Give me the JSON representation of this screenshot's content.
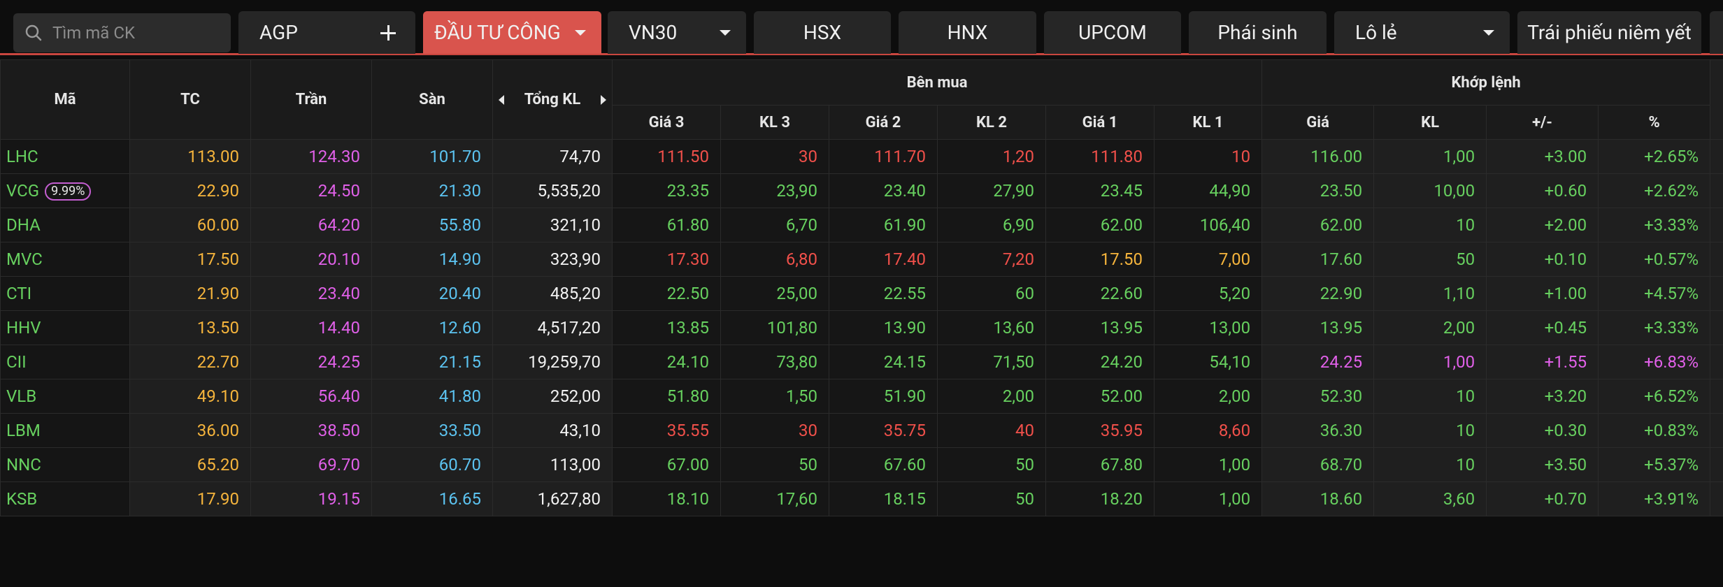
{
  "topbar": {
    "search_placeholder": "Tìm mã CK",
    "watchlist": "AGP",
    "tabs": [
      {
        "label": "ĐẦU TƯ CÔNG",
        "active": true,
        "dropdown": true
      },
      {
        "label": "VN30",
        "dropdown": true
      },
      {
        "label": "HSX"
      },
      {
        "label": "HNX"
      },
      {
        "label": "UPCOM"
      },
      {
        "label": "Phái sinh"
      },
      {
        "label": "Lô lẻ",
        "dropdown": true
      },
      {
        "label": "Trái phiếu niêm yết"
      }
    ]
  },
  "table": {
    "headers": {
      "symbol": "Mã",
      "ref": "TC",
      "ceil": "Trần",
      "floor": "Sàn",
      "total_volume": "Tổng KL",
      "bid_group": "Bên mua",
      "bids": [
        "Giá 3",
        "KL 3",
        "Giá 2",
        "KL 2",
        "Giá 1",
        "KL 1"
      ],
      "match_group": "Khớp lệnh",
      "match": [
        "Giá",
        "KL",
        "+/-",
        "%"
      ]
    },
    "rows": [
      {
        "symbol": "LHC",
        "symbol_color": "up",
        "ref": "113.00",
        "ceil": "124.30",
        "floor": "101.70",
        "total_volume": "74,70",
        "bids": [
          {
            "price": "111.50",
            "volume": "30",
            "color": "down"
          },
          {
            "price": "111.70",
            "volume": "1,20",
            "color": "down"
          },
          {
            "price": "111.80",
            "volume": "10",
            "color": "down"
          }
        ],
        "match": {
          "price": "116.00",
          "volume": "1,00",
          "change": "+3.00",
          "percent": "+2.65%",
          "color": "up"
        }
      },
      {
        "symbol": "VCG",
        "badge": "9.99%",
        "symbol_color": "up",
        "ref": "22.90",
        "ceil": "24.50",
        "floor": "21.30",
        "total_volume": "5,535,20",
        "bids": [
          {
            "price": "23.35",
            "volume": "23,90",
            "color": "up"
          },
          {
            "price": "23.40",
            "volume": "27,90",
            "color": "up"
          },
          {
            "price": "23.45",
            "volume": "44,90",
            "color": "up"
          }
        ],
        "match": {
          "price": "23.50",
          "volume": "10,00",
          "change": "+0.60",
          "percent": "+2.62%",
          "color": "up"
        }
      },
      {
        "symbol": "DHA",
        "symbol_color": "up",
        "ref": "60.00",
        "ceil": "64.20",
        "floor": "55.80",
        "total_volume": "321,10",
        "bids": [
          {
            "price": "61.80",
            "volume": "6,70",
            "color": "up"
          },
          {
            "price": "61.90",
            "volume": "6,90",
            "color": "up"
          },
          {
            "price": "62.00",
            "volume": "106,40",
            "color": "up"
          }
        ],
        "match": {
          "price": "62.00",
          "volume": "10",
          "change": "+2.00",
          "percent": "+3.33%",
          "color": "up"
        }
      },
      {
        "symbol": "MVC",
        "symbol_color": "up",
        "ref": "17.50",
        "ceil": "20.10",
        "floor": "14.90",
        "total_volume": "323,90",
        "bids": [
          {
            "price": "17.30",
            "volume": "6,80",
            "color": "down"
          },
          {
            "price": "17.40",
            "volume": "7,20",
            "color": "down"
          },
          {
            "price": "17.50",
            "volume": "7,00",
            "color": "ref"
          }
        ],
        "match": {
          "price": "17.60",
          "volume": "50",
          "change": "+0.10",
          "percent": "+0.57%",
          "color": "up"
        }
      },
      {
        "symbol": "CTI",
        "symbol_color": "up",
        "ref": "21.90",
        "ceil": "23.40",
        "floor": "20.40",
        "total_volume": "485,20",
        "bids": [
          {
            "price": "22.50",
            "volume": "25,00",
            "color": "up"
          },
          {
            "price": "22.55",
            "volume": "60",
            "color": "up"
          },
          {
            "price": "22.60",
            "volume": "5,20",
            "color": "up"
          }
        ],
        "match": {
          "price": "22.90",
          "volume": "1,10",
          "change": "+1.00",
          "percent": "+4.57%",
          "color": "up"
        }
      },
      {
        "symbol": "HHV",
        "symbol_color": "up",
        "ref": "13.50",
        "ceil": "14.40",
        "floor": "12.60",
        "total_volume": "4,517,20",
        "bids": [
          {
            "price": "13.85",
            "volume": "101,80",
            "color": "up"
          },
          {
            "price": "13.90",
            "volume": "13,60",
            "color": "up"
          },
          {
            "price": "13.95",
            "volume": "13,00",
            "color": "up"
          }
        ],
        "match": {
          "price": "13.95",
          "volume": "2,00",
          "change": "+0.45",
          "percent": "+3.33%",
          "color": "up"
        }
      },
      {
        "symbol": "CII",
        "symbol_color": "up",
        "ref": "22.70",
        "ceil": "24.25",
        "floor": "21.15",
        "total_volume": "19,259,70",
        "bids": [
          {
            "price": "24.10",
            "volume": "73,80",
            "color": "up"
          },
          {
            "price": "24.15",
            "volume": "71,50",
            "color": "up"
          },
          {
            "price": "24.20",
            "volume": "54,10",
            "color": "up"
          }
        ],
        "match": {
          "price": "24.25",
          "volume": "1,00",
          "change": "+1.55",
          "percent": "+6.83%",
          "color": "ceil"
        }
      },
      {
        "symbol": "VLB",
        "symbol_color": "up",
        "ref": "49.10",
        "ceil": "56.40",
        "floor": "41.80",
        "total_volume": "252,00",
        "bids": [
          {
            "price": "51.80",
            "volume": "1,50",
            "color": "up"
          },
          {
            "price": "51.90",
            "volume": "2,00",
            "color": "up"
          },
          {
            "price": "52.00",
            "volume": "2,00",
            "color": "up"
          }
        ],
        "match": {
          "price": "52.30",
          "volume": "10",
          "change": "+3.20",
          "percent": "+6.52%",
          "color": "up"
        }
      },
      {
        "symbol": "LBM",
        "symbol_color": "up",
        "ref": "36.00",
        "ceil": "38.50",
        "floor": "33.50",
        "total_volume": "43,10",
        "bids": [
          {
            "price": "35.55",
            "volume": "30",
            "color": "down"
          },
          {
            "price": "35.75",
            "volume": "40",
            "color": "down"
          },
          {
            "price": "35.95",
            "volume": "8,60",
            "color": "down"
          }
        ],
        "match": {
          "price": "36.30",
          "volume": "10",
          "change": "+0.30",
          "percent": "+0.83%",
          "color": "up"
        }
      },
      {
        "symbol": "NNC",
        "symbol_color": "up",
        "ref": "65.20",
        "ceil": "69.70",
        "floor": "60.70",
        "total_volume": "113,00",
        "bids": [
          {
            "price": "67.00",
            "volume": "50",
            "color": "up"
          },
          {
            "price": "67.60",
            "volume": "50",
            "color": "up"
          },
          {
            "price": "67.80",
            "volume": "1,00",
            "color": "up"
          }
        ],
        "match": {
          "price": "68.70",
          "volume": "10",
          "change": "+3.50",
          "percent": "+5.37%",
          "color": "up"
        }
      },
      {
        "symbol": "KSB",
        "symbol_color": "up",
        "ref": "17.90",
        "ceil": "19.15",
        "floor": "16.65",
        "total_volume": "1,627,80",
        "bids": [
          {
            "price": "18.10",
            "volume": "17,60",
            "color": "up"
          },
          {
            "price": "18.15",
            "volume": "50",
            "color": "up"
          },
          {
            "price": "18.20",
            "volume": "1,00",
            "color": "up"
          }
        ],
        "match": {
          "price": "18.60",
          "volume": "3,60",
          "change": "+0.70",
          "percent": "+3.91%",
          "color": "up"
        }
      }
    ]
  }
}
